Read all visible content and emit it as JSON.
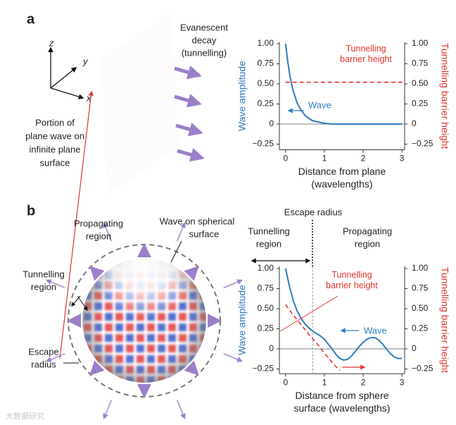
{
  "figure": {
    "a": {
      "label": "a",
      "axes_letters": [
        "z",
        "y",
        "x"
      ],
      "caption_lines": [
        "Portion of",
        "plane wave on",
        "infinite plane",
        "surface"
      ],
      "decay_lines": [
        "Evanescent",
        "decay",
        "(tunnelling)"
      ]
    },
    "b": {
      "label": "b",
      "propagating_lines": [
        "Propagating",
        "region"
      ],
      "surface_lines": [
        "Wave on spherical",
        "surface"
      ],
      "tunnelling_lines": [
        "Tunnelling",
        "region"
      ],
      "escape_lines": [
        "Escape",
        "radius"
      ],
      "chart_escape": "Escape radius",
      "chart_tunnelling_lines": [
        "Tunnelling",
        "region"
      ],
      "chart_propagating_lines": [
        "Propagating",
        "region"
      ]
    },
    "watermark": "大数据研究"
  },
  "chart_data": [
    {
      "type": "line",
      "xlabel": [
        "Distance from plane",
        "(wavelengths)"
      ],
      "ylabel": "Wave amplitude",
      "y2label": "Tunnelling barrier height",
      "xlim": [
        -0.16,
        3.07
      ],
      "ylim": [
        -0.32,
        1.02
      ],
      "y2lim": [
        -0.32,
        1.02
      ],
      "xticks": [
        0,
        1,
        2,
        3
      ],
      "yticks": [
        {
          "value": 1,
          "label": "1.00"
        },
        0.75,
        {
          "value": 0.5,
          "label": "0.50"
        },
        0.25,
        0,
        {
          "value": -0.25,
          "label": "−0.25"
        }
      ],
      "y2ticks": [
        {
          "value": 1,
          "label": "1.00"
        },
        0.75,
        {
          "value": 0.5,
          "label": "0.50"
        },
        0.25,
        0,
        {
          "value": -0.25,
          "label": "−0.25"
        }
      ],
      "reference_line": 0,
      "series": [
        {
          "name": "Wave",
          "color": "#2f7bbf",
          "x": [
            0,
            0.05,
            0.1,
            0.15,
            0.2,
            0.3,
            0.4,
            0.5,
            0.6,
            0.7,
            0.8,
            0.9,
            1,
            1.2,
            1.5,
            2,
            2.5,
            3
          ],
          "values": [
            1,
            0.8,
            0.64,
            0.51,
            0.41,
            0.26,
            0.17,
            0.11,
            0.07,
            0.04,
            0.03,
            0.02,
            0.01,
            0,
            0,
            0,
            0,
            0
          ]
        },
        {
          "name": "Tunnelling barrier height",
          "color": "#e2342b",
          "dashed": true,
          "axis": "y2",
          "x": [
            0,
            3.05
          ],
          "values": [
            0.52,
            0.52
          ]
        }
      ]
    },
    {
      "type": "line",
      "xlabel": [
        "Distance from sphere",
        "surface (wavelengths)"
      ],
      "ylabel": "Wave amplitude",
      "y2label": "Tunnelling barrier height",
      "xlim": [
        -0.16,
        3.07
      ],
      "ylim": [
        -0.31,
        1.03
      ],
      "y2lim": [
        -0.31,
        1.03
      ],
      "xticks": [
        0,
        1,
        2,
        3
      ],
      "yticks": [
        {
          "value": 1,
          "label": "1.00"
        },
        0.75,
        {
          "value": 0.5,
          "label": "0.50"
        },
        0.25,
        0,
        {
          "value": -0.25,
          "label": "−0.25"
        }
      ],
      "y2ticks": [
        {
          "value": 1,
          "label": "1.00"
        },
        0.75,
        {
          "value": 0.5,
          "label": "0.50"
        },
        0.25,
        0,
        {
          "value": -0.25,
          "label": "−0.25"
        }
      ],
      "reference_line": 0,
      "escape_radius": 0.7,
      "series": [
        {
          "name": "Wave",
          "color": "#2f7bbf",
          "x": [
            0,
            0.1,
            0.2,
            0.3,
            0.4,
            0.5,
            0.6,
            0.7,
            0.8,
            0.9,
            1.0,
            1.1,
            1.2,
            1.3,
            1.4,
            1.5,
            1.6,
            1.7,
            1.8,
            1.9,
            2.0,
            2.1,
            2.2,
            2.3,
            2.4,
            2.5,
            2.6,
            2.7,
            2.8,
            2.9,
            3.0
          ],
          "values": [
            1.0,
            0.78,
            0.6,
            0.47,
            0.38,
            0.31,
            0.26,
            0.22,
            0.19,
            0.16,
            0.12,
            0.06,
            0.0,
            -0.07,
            -0.12,
            -0.14,
            -0.13,
            -0.09,
            -0.03,
            0.03,
            0.08,
            0.12,
            0.14,
            0.14,
            0.11,
            0.06,
            0.0,
            -0.06,
            -0.1,
            -0.12,
            -0.12
          ]
        },
        {
          "name": "Tunnelling barrier height",
          "color": "#e2342b",
          "dashed": true,
          "axis": "y2",
          "x": [
            0,
            0.2,
            0.4,
            0.6,
            0.8,
            1.0,
            1.2,
            1.4
          ],
          "values": [
            0.55,
            0.42,
            0.3,
            0.18,
            0.07,
            -0.05,
            -0.17,
            -0.27
          ]
        }
      ]
    }
  ]
}
